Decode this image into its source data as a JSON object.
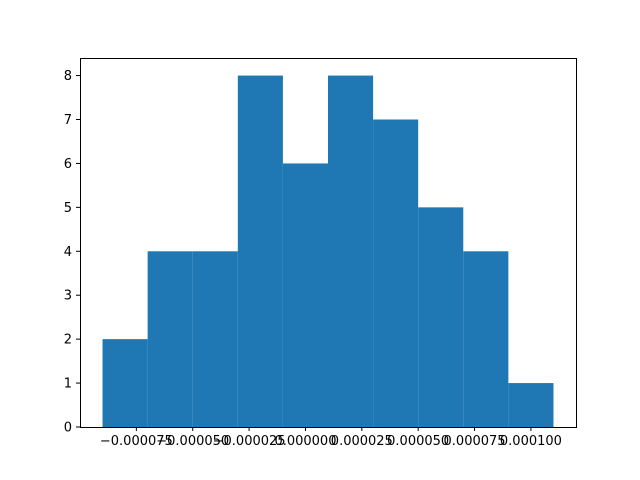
{
  "chart_data": {
    "type": "bar",
    "title": "",
    "xlabel": "",
    "ylabel": "",
    "bin_edges": [
      -9e-05,
      -7e-05,
      -5e-05,
      -3e-05,
      -1e-05,
      1e-05,
      3e-05,
      5e-05,
      7e-05,
      9e-05,
      0.00011
    ],
    "values": [
      2,
      4,
      4,
      8,
      6,
      8,
      7,
      5,
      4,
      1
    ],
    "xlim": [
      -0.0001,
      0.00012
    ],
    "ylim": [
      0,
      8.4
    ],
    "x_ticks": [
      {
        "value": -7.5e-05,
        "label": "−0.000075"
      },
      {
        "value": -5e-05,
        "label": "−0.000050"
      },
      {
        "value": -2.5e-05,
        "label": "−0.000025"
      },
      {
        "value": 0,
        "label": "0.000000"
      },
      {
        "value": 2.5e-05,
        "label": "0.000025"
      },
      {
        "value": 5e-05,
        "label": "0.000050"
      },
      {
        "value": 7.5e-05,
        "label": "0.000075"
      },
      {
        "value": 0.0001,
        "label": "0.000100"
      }
    ],
    "y_ticks": [
      {
        "value": 0,
        "label": "0"
      },
      {
        "value": 1,
        "label": "1"
      },
      {
        "value": 2,
        "label": "2"
      },
      {
        "value": 3,
        "label": "3"
      },
      {
        "value": 4,
        "label": "4"
      },
      {
        "value": 5,
        "label": "5"
      },
      {
        "value": 6,
        "label": "6"
      },
      {
        "value": 7,
        "label": "7"
      },
      {
        "value": 8,
        "label": "8"
      }
    ],
    "bar_color": "#1f77b4",
    "grid": false,
    "legend": "none"
  }
}
